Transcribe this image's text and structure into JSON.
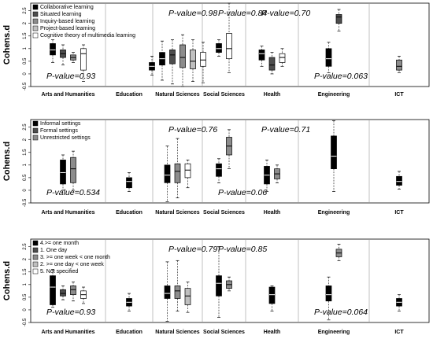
{
  "categories": [
    "Arts and Humanities",
    "Education",
    "Natural Sciences",
    "Social Sciences",
    "Health",
    "Engineering",
    "ICT"
  ],
  "colors": {
    "black": "#000000",
    "dark_gray": "#4d4d4d",
    "mid_gray": "#8c8c8c",
    "light_gray": "#c0c0c0",
    "white": "#ffffff"
  },
  "chart_data": [
    {
      "type": "boxplot",
      "ylabel": "Cohens.d",
      "ylim": [
        -0.5,
        2.8
      ],
      "yticks": [
        "-0.5",
        "0",
        "0.5",
        "1",
        "1.5",
        "2",
        "2.5"
      ],
      "categories": [
        "Arts and Humanities",
        "Education",
        "Natural Sciences",
        "Social Sciences",
        "Health",
        "Engineering",
        "ICT"
      ],
      "legend": [
        "Collaborative learning",
        "Situated learning",
        "Inquiry-based learning",
        "Project-based learning",
        "Cognitive theory of multimedia learning"
      ],
      "legend_position": "top-left",
      "pvalues": [
        {
          "text": "P-value=0.93",
          "category": "Arts and Humanities",
          "placement": "bottom"
        },
        {
          "text": "P-value=0.98",
          "category": "Natural Sciences",
          "placement": "top"
        },
        {
          "text": "P-value=0.84",
          "category": "Social Sciences",
          "placement": "top"
        },
        {
          "text": "P-value=0.70",
          "category": "Health",
          "placement": "top"
        },
        {
          "text": "P-value=0.063",
          "category": "Engineering",
          "placement": "bottom"
        }
      ],
      "boxes": [
        {
          "category": "Arts and Humanities",
          "series": "Collaborative learning",
          "color": "black",
          "stats": [
            0.45,
            0.75,
            0.95,
            1.2,
            1.35
          ]
        },
        {
          "category": "Arts and Humanities",
          "series": "Situated learning",
          "color": "dark_gray",
          "stats": [
            0.35,
            0.65,
            0.8,
            0.95,
            1.15
          ]
        },
        {
          "category": "Arts and Humanities",
          "series": "Inquiry-based learning",
          "color": "mid_gray",
          "stats": [
            0.45,
            0.55,
            0.65,
            0.75,
            0.85
          ]
        },
        {
          "category": "Arts and Humanities",
          "series": "Project-based learning",
          "color": "white",
          "stats": [
            -0.3,
            0.15,
            0.8,
            1.0,
            1.15
          ]
        },
        {
          "category": "Natural Sciences",
          "series": "Collaborative learning",
          "color": "black",
          "stats": [
            -0.05,
            0.15,
            0.3,
            0.45,
            0.7
          ]
        },
        {
          "category": "Natural Sciences",
          "series": "Situated learning",
          "color": "black",
          "stats": [
            -0.25,
            0.35,
            0.6,
            0.85,
            1.3
          ]
        },
        {
          "category": "Natural Sciences",
          "series": "Inquiry-based learning",
          "color": "dark_gray",
          "stats": [
            -0.4,
            0.4,
            0.75,
            0.95,
            1.35
          ]
        },
        {
          "category": "Natural Sciences",
          "series": "Project-based learning",
          "color": "mid_gray",
          "stats": [
            -0.5,
            0.25,
            0.65,
            1.15,
            1.55
          ]
        },
        {
          "category": "Natural Sciences",
          "series": "Cognitive theory of multimedia learning",
          "color": "light_gray",
          "stats": [
            -0.3,
            0.2,
            0.5,
            0.95,
            1.35
          ]
        },
        {
          "category": "Natural Sciences",
          "series": "Project-based learning",
          "color": "white",
          "stats": [
            -0.35,
            0.3,
            0.55,
            0.85,
            1.25
          ]
        },
        {
          "category": "Social Sciences",
          "series": "Collaborative learning",
          "color": "black",
          "stats": [
            0.7,
            0.85,
            1.0,
            1.2,
            1.35
          ]
        },
        {
          "category": "Social Sciences",
          "series": "Project-based learning",
          "color": "white",
          "stats": [
            0.05,
            0.6,
            1.0,
            1.6,
            2.8
          ]
        },
        {
          "category": "Health",
          "series": "Collaborative learning",
          "color": "black",
          "stats": [
            0.3,
            0.55,
            0.8,
            0.95,
            1.1
          ]
        },
        {
          "category": "Health",
          "series": "Situated learning",
          "color": "dark_gray",
          "stats": [
            0.0,
            0.15,
            0.35,
            0.65,
            0.85
          ]
        },
        {
          "category": "Health",
          "series": "Project-based learning",
          "color": "white",
          "stats": [
            0.3,
            0.45,
            0.65,
            0.8,
            1.0
          ]
        },
        {
          "category": "Engineering",
          "series": "Collaborative learning",
          "color": "black",
          "stats": [
            0.05,
            0.3,
            0.6,
            1.0,
            1.25
          ]
        },
        {
          "category": "Engineering",
          "series": "Situated learning",
          "color": "dark_gray",
          "stats": [
            1.7,
            2.0,
            2.25,
            2.35,
            2.55
          ]
        },
        {
          "category": "ICT",
          "series": "Inquiry-based learning",
          "color": "mid_gray",
          "stats": [
            0.05,
            0.15,
            0.3,
            0.55,
            0.7
          ]
        }
      ]
    },
    {
      "type": "boxplot",
      "ylabel": "Cohens.d",
      "ylim": [
        -0.5,
        2.8
      ],
      "yticks": [
        "-0.5",
        "0",
        "0.5",
        "1",
        "1.5",
        "2",
        "2.5"
      ],
      "categories": [
        "Arts and Humanities",
        "Education",
        "Natural Sciences",
        "Social Sciences",
        "Health",
        "Engineering",
        "ICT"
      ],
      "legend": [
        "Informal settings",
        "Formal settings",
        "Unrestricted settings"
      ],
      "legend_position": "top-left",
      "pvalues": [
        {
          "text": "P-value=0.534",
          "category": "Arts and Humanities",
          "placement": "bottom"
        },
        {
          "text": "P-value=0.76",
          "category": "Natural Sciences",
          "placement": "top"
        },
        {
          "text": "P-value=0.06",
          "category": "Social Sciences",
          "placement": "bottom"
        },
        {
          "text": "P-value=0.71",
          "category": "Health",
          "placement": "top"
        }
      ],
      "boxes": [
        {
          "category": "Arts and Humanities",
          "series": "Informal settings",
          "color": "black",
          "stats": [
            0.0,
            0.25,
            0.7,
            1.2,
            1.4
          ]
        },
        {
          "category": "Arts and Humanities",
          "series": "Formal settings",
          "color": "mid_gray",
          "stats": [
            0.0,
            0.3,
            0.85,
            1.3,
            1.55
          ]
        },
        {
          "category": "Education",
          "series": "Informal settings",
          "color": "black",
          "stats": [
            -0.05,
            0.1,
            0.35,
            0.5,
            0.7
          ]
        },
        {
          "category": "Natural Sciences",
          "series": "Informal settings",
          "color": "black",
          "stats": [
            -0.45,
            0.3,
            0.6,
            1.0,
            1.75
          ]
        },
        {
          "category": "Natural Sciences",
          "series": "Formal settings",
          "color": "mid_gray",
          "stats": [
            -0.3,
            0.3,
            0.75,
            1.05,
            2.05
          ]
        },
        {
          "category": "Natural Sciences",
          "series": "Unrestricted settings",
          "color": "white",
          "stats": [
            0.1,
            0.5,
            0.8,
            1.05,
            1.2
          ]
        },
        {
          "category": "Social Sciences",
          "series": "Informal settings",
          "color": "black",
          "stats": [
            0.3,
            0.55,
            0.85,
            1.05,
            1.25
          ]
        },
        {
          "category": "Social Sciences",
          "series": "Formal settings",
          "color": "mid_gray",
          "stats": [
            0.85,
            1.4,
            1.75,
            2.1,
            2.4
          ]
        },
        {
          "category": "Health",
          "series": "Informal settings",
          "color": "black",
          "stats": [
            -0.05,
            0.25,
            0.6,
            0.95,
            1.2
          ]
        },
        {
          "category": "Health",
          "series": "Formal settings",
          "color": "mid_gray",
          "stats": [
            0.3,
            0.45,
            0.65,
            0.85,
            1.0
          ]
        },
        {
          "category": "Engineering",
          "series": "Informal settings",
          "color": "black",
          "stats": [
            -0.05,
            0.85,
            1.35,
            2.15,
            2.75
          ]
        },
        {
          "category": "ICT",
          "series": "Informal settings",
          "color": "black",
          "stats": [
            0.05,
            0.2,
            0.35,
            0.55,
            0.75
          ]
        }
      ]
    },
    {
      "type": "boxplot",
      "ylabel": "Cohens.d",
      "ylim": [
        -0.5,
        2.8
      ],
      "yticks": [
        "-0.5",
        "0",
        "0.5",
        "1",
        "1.5",
        "2",
        "2.5"
      ],
      "categories": [
        "Arts and Humanities",
        "Education",
        "Natural Sciences",
        "Social Sciences",
        "Health",
        "Engineering",
        "ICT"
      ],
      "legend": [
        "4.>= one month",
        "1. One day",
        "3. >= one week < one month",
        "2. >= one day < one week",
        "5. Not specified"
      ],
      "legend_position": "top-left",
      "pvalues": [
        {
          "text": "P-value=0.93",
          "category": "Arts and Humanities",
          "placement": "bottom"
        },
        {
          "text": "P-value=0.79",
          "category": "Natural Sciences",
          "placement": "top"
        },
        {
          "text": "P-value=0.85",
          "category": "Social Sciences",
          "placement": "top"
        },
        {
          "text": "P-value=0.064",
          "category": "Engineering",
          "placement": "bottom"
        }
      ],
      "boxes": [
        {
          "category": "Arts and Humanities",
          "series": "4.>= one month",
          "color": "black",
          "stats": [
            0.1,
            0.2,
            0.9,
            1.35,
            1.6
          ]
        },
        {
          "category": "Arts and Humanities",
          "series": "1. One day",
          "color": "dark_gray",
          "stats": [
            0.4,
            0.55,
            0.65,
            0.8,
            0.95
          ]
        },
        {
          "category": "Arts and Humanities",
          "series": "3. >= one week < one month",
          "color": "mid_gray",
          "stats": [
            0.35,
            0.6,
            0.8,
            0.95,
            1.1
          ]
        },
        {
          "category": "Arts and Humanities",
          "series": "2. >= one day < one week",
          "color": "white",
          "stats": [
            0.25,
            0.45,
            0.6,
            0.75,
            0.9
          ]
        },
        {
          "category": "Education",
          "series": "4.>= one month",
          "color": "black",
          "stats": [
            -0.05,
            0.15,
            0.3,
            0.45,
            0.65
          ]
        },
        {
          "category": "Natural Sciences",
          "series": "4.>= one month",
          "color": "black",
          "stats": [
            -0.45,
            0.45,
            0.65,
            0.95,
            1.9
          ]
        },
        {
          "category": "Natural Sciences",
          "series": "3. >= one week < one month",
          "color": "mid_gray",
          "stats": [
            -0.05,
            0.45,
            0.75,
            0.95,
            1.95
          ]
        },
        {
          "category": "Natural Sciences",
          "series": "2. >= one day < one week",
          "color": "light_gray",
          "stats": [
            -0.1,
            0.2,
            0.55,
            0.85,
            1.1
          ]
        },
        {
          "category": "Social Sciences",
          "series": "4.>= one month",
          "color": "black",
          "stats": [
            -0.3,
            0.55,
            1.05,
            1.35,
            2.5
          ]
        },
        {
          "category": "Social Sciences",
          "series": "3. >= one week < one month",
          "color": "mid_gray",
          "stats": [
            0.75,
            0.85,
            1.0,
            1.15,
            1.3
          ]
        },
        {
          "category": "Health",
          "series": "4.>= one month",
          "color": "black",
          "stats": [
            -0.05,
            0.25,
            0.6,
            0.9,
            0.95
          ]
        },
        {
          "category": "Engineering",
          "series": "4.>= one month",
          "color": "black",
          "stats": [
            -0.4,
            0.35,
            0.6,
            0.95,
            1.3
          ]
        },
        {
          "category": "Engineering",
          "series": "3. >= one week < one month",
          "color": "mid_gray",
          "stats": [
            1.95,
            2.1,
            2.25,
            2.4,
            2.6
          ]
        },
        {
          "category": "ICT",
          "series": "4.>= one month",
          "color": "black",
          "stats": [
            -0.05,
            0.15,
            0.3,
            0.45,
            0.6
          ]
        }
      ]
    }
  ]
}
